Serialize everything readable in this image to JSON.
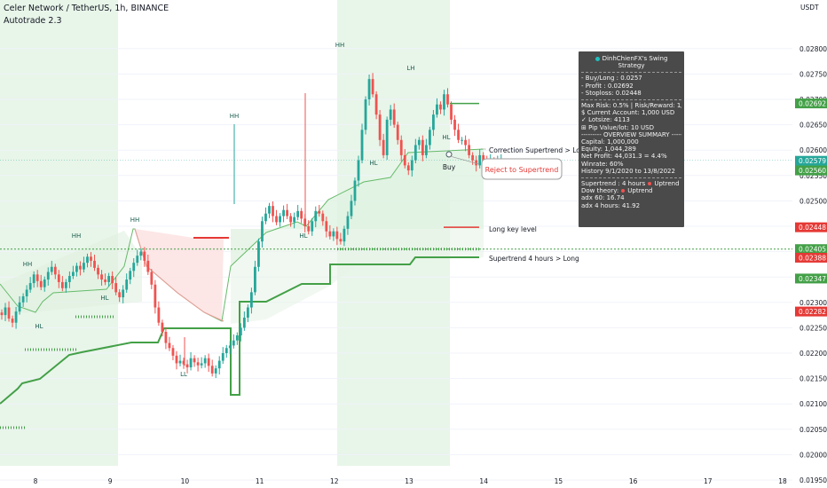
{
  "header": {
    "symbol": "Celer Network / TetherUS, 1h, BINANCE",
    "indicator": "Autotrade 2.3"
  },
  "currency": "USDT",
  "overlay": {
    "title": "DinhChienFX's Swing Strategy",
    "buy_long": "- Buy/Long    : 0.0257",
    "profit": "- Profit  : 0.02692",
    "stoploss": "- Stoploss: 0.02448",
    "risk": "Max Risk: 0.5% | Risk/Reward: 1/1",
    "account": "$ Current Account: 1,000 USD",
    "lotsize": "✓ Lotsize: 4113",
    "pip": "⊞ Pip Value/lot: 10 USD",
    "overview": "--------- OVERVIEW SUMMARY ---------",
    "capital": "Capital: 1,000,000",
    "equity": "Equity: 1,044,289",
    "net_profit": "Net Profit: 44,031.3 = 4.4%",
    "winrate": "Winrate: 60%",
    "history": "History 9/1/2020 to 13/8/2022",
    "supertrend_label": "Supertrend : 4 hours",
    "supertrend_value": "Uptrend",
    "dow_label": "Dow theory:",
    "dow_value": "Uptrend",
    "adx60": "adx 60: 16.74",
    "adx4h": "adx 4 hours: 41.92"
  },
  "chart_data": {
    "type": "candlestick",
    "x_ticks": [
      "8",
      "9",
      "10",
      "11",
      "12",
      "13",
      "14",
      "15",
      "16",
      "17",
      "18"
    ],
    "y_ticks": [
      "0.02800",
      "0.02750",
      "0.02700",
      "0.02650",
      "0.02600",
      "0.02550",
      "0.02500",
      "0.02450",
      "0.02400",
      "0.02350",
      "0.02300",
      "0.02250",
      "0.02200",
      "0.02150",
      "0.02100",
      "0.02050",
      "0.02000",
      "0.01950"
    ],
    "ylim": [
      0.0192,
      0.0283
    ],
    "price_labels": [
      {
        "text": "0.02692",
        "value": 0.02692,
        "color": "#43a047"
      },
      {
        "text": "0.02579",
        "value": 0.02579,
        "color": "#26a69a",
        "countdown": "59:16"
      },
      {
        "text": "0.02560",
        "value": 0.0256,
        "color": "#43a047"
      },
      {
        "text": "0.02448",
        "value": 0.02448,
        "color": "#e53935"
      },
      {
        "text": "0.02405",
        "value": 0.02405,
        "color": "#43a047"
      },
      {
        "text": "0.02388",
        "value": 0.02388,
        "color": "#e53935"
      },
      {
        "text": "0.02347",
        "value": 0.02347,
        "color": "#43a047"
      },
      {
        "text": "0.02282",
        "value": 0.02282,
        "color": "#e53935"
      }
    ],
    "annotations": {
      "correction": "Correction Supertrend  > Long",
      "reject": "Reject to Supertrend",
      "long_key": "Long key level",
      "supertrend4h": "Supertrend 4 hours > Long",
      "buy": "Buy",
      "swings": [
        "HH",
        "HL",
        "HH",
        "HL",
        "HH",
        "LL",
        "HH",
        "HL",
        "HH",
        "LH",
        "HL",
        "HL"
      ]
    },
    "levels": {
      "profit": 0.02692,
      "stoploss": 0.02448,
      "key_level": 0.02405,
      "entry": 0.0257
    },
    "close_series": [
      0.02275,
      0.0229,
      0.02268,
      0.0226,
      0.02282,
      0.023,
      0.02312,
      0.02325,
      0.02338,
      0.02355,
      0.02342,
      0.0233,
      0.02345,
      0.0236,
      0.0237,
      0.02355,
      0.0234,
      0.02328,
      0.0234,
      0.02352,
      0.0236,
      0.02372,
      0.02365,
      0.02378,
      0.0239,
      0.02382,
      0.02368,
      0.02355,
      0.02345,
      0.0234,
      0.02352,
      0.02338,
      0.0232,
      0.0231,
      0.02325,
      0.02345,
      0.02362,
      0.02378,
      0.02392,
      0.024,
      0.02382,
      0.0236,
      0.02335,
      0.0229,
      0.0226,
      0.02242,
      0.0222,
      0.0221,
      0.02195,
      0.0218,
      0.02185,
      0.02178,
      0.02172,
      0.0219,
      0.02182,
      0.02176,
      0.0218,
      0.0219,
      0.02175,
      0.0216,
      0.0217,
      0.02185,
      0.022,
      0.0221,
      0.02215,
      0.02225,
      0.02235,
      0.0225,
      0.0227,
      0.0229,
      0.0232,
      0.0237,
      0.0242,
      0.0246,
      0.02475,
      0.0249,
      0.0247,
      0.02458,
      0.0247,
      0.02482,
      0.0247,
      0.02458,
      0.02468,
      0.0248,
      0.02465,
      0.0245,
      0.0244,
      0.0246,
      0.0248,
      0.02475,
      0.0246,
      0.0244,
      0.0243,
      0.0244,
      0.02425,
      0.0242,
      0.02445,
      0.0247,
      0.025,
      0.0254,
      0.0258,
      0.0264,
      0.027,
      0.0274,
      0.0271,
      0.0267,
      0.0262,
      0.0259,
      0.0266,
      0.0268,
      0.0265,
      0.0262,
      0.0259,
      0.0257,
      0.0256,
      0.0258,
      0.0261,
      0.0262,
      0.0259,
      0.0261,
      0.0264,
      0.0267,
      0.0269,
      0.0268,
      0.0271,
      0.0269,
      0.0266,
      0.0264,
      0.0262,
      0.0262,
      0.0261,
      0.0259,
      0.0258,
      0.0257,
      0.0259,
      0.0258,
      0.0257,
      0.0258,
      0.0257,
      0.0258,
      0.0258
    ]
  }
}
